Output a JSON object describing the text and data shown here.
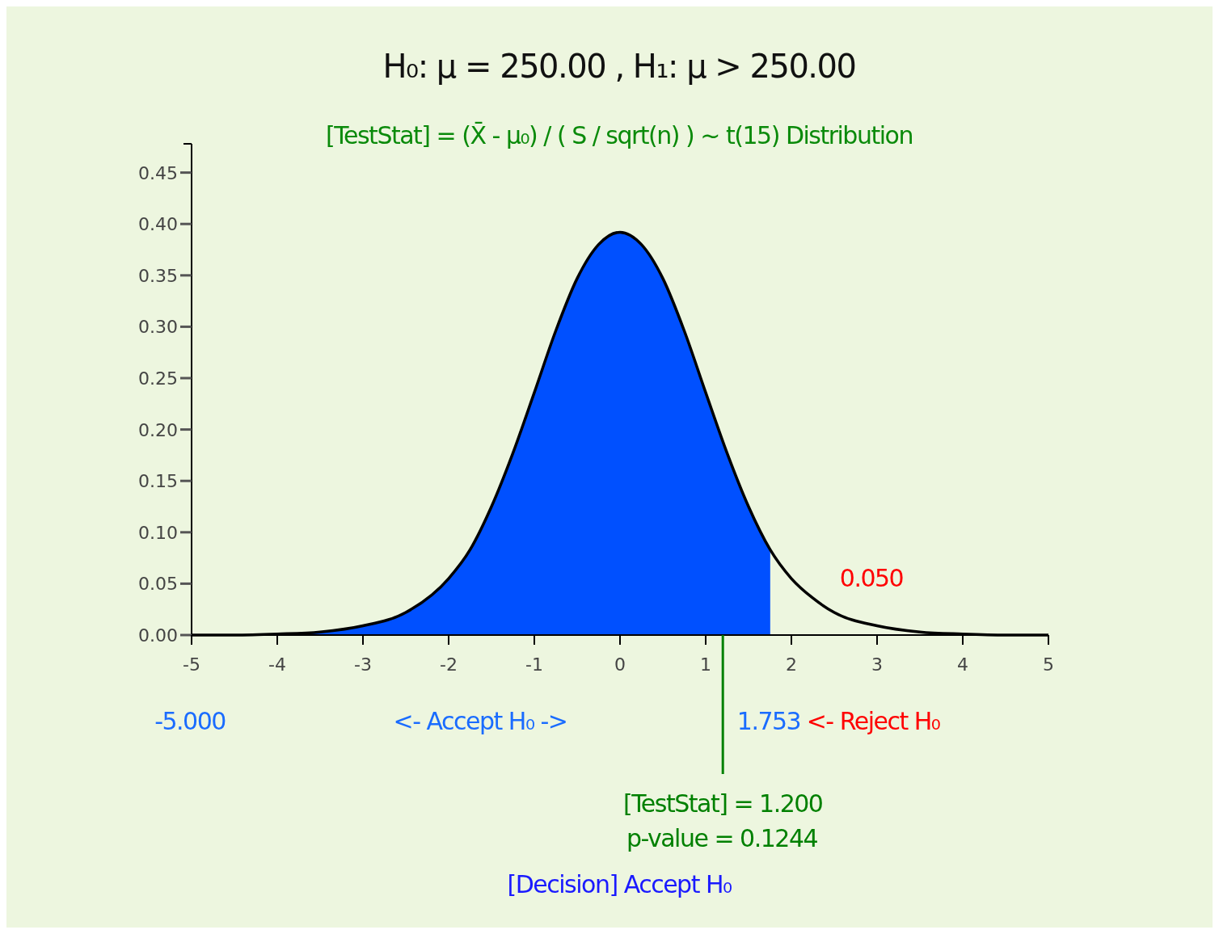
{
  "chart_data": {
    "type": "area",
    "title": "H₀: μ = 250.00 , H₁: μ > 250.00",
    "subtitle": "[TestStat] = (X̄ - μ₀) / ( S / sqrt(n) ) ~ t(15) Distribution",
    "series": [
      {
        "color": "#0050ff",
        "x": [
          -5,
          -4.5,
          -4,
          -3.5,
          -3,
          -2.5,
          -2,
          -1.75,
          -1.5,
          -1.25,
          -1,
          -0.75,
          -0.5,
          -0.25,
          0,
          0.25,
          0.5,
          0.75,
          1,
          1.25,
          1.5,
          1.753
        ],
        "values": [
          0,
          0,
          0.001,
          0.003,
          0.009,
          0.022,
          0.055,
          0.083,
          0.125,
          0.177,
          0.236,
          0.296,
          0.347,
          0.38,
          0.392,
          0.38,
          0.347,
          0.296,
          0.236,
          0.177,
          0.125,
          0.083
        ]
      },
      {
        "type": "line",
        "color": "#000000",
        "x": [
          -5,
          -4.5,
          -4,
          -3.5,
          -3,
          -2.5,
          -2,
          -1.75,
          -1.5,
          -1.25,
          -1,
          -0.75,
          -0.5,
          -0.25,
          0,
          0.25,
          0.5,
          0.75,
          1,
          1.25,
          1.5,
          1.753,
          2,
          2.25,
          2.5,
          3,
          3.5,
          4,
          4.5,
          5
        ],
        "values": [
          0,
          0,
          0.001,
          0.003,
          0.009,
          0.022,
          0.055,
          0.083,
          0.125,
          0.177,
          0.236,
          0.296,
          0.347,
          0.38,
          0.392,
          0.38,
          0.347,
          0.296,
          0.236,
          0.177,
          0.125,
          0.083,
          0.055,
          0.036,
          0.022,
          0.009,
          0.003,
          0.001,
          0,
          0
        ]
      }
    ],
    "xlim": [
      -5,
      5
    ],
    "xticks": [
      -5,
      -4,
      -3,
      -2,
      -1,
      0,
      1,
      2,
      3,
      4,
      5
    ],
    "ylim": [
      0,
      0.478
    ],
    "yticks": [
      {
        "value": 0,
        "label": "0.00"
      },
      {
        "value": 0.05,
        "label": "0.05"
      },
      {
        "value": 0.1,
        "label": "0.10"
      },
      {
        "value": 0.15,
        "label": "0.15"
      },
      {
        "value": 0.2,
        "label": "0.20"
      },
      {
        "value": 0.25,
        "label": "0.25"
      },
      {
        "value": 0.3,
        "label": "0.30"
      },
      {
        "value": 0.35,
        "label": "0.35"
      },
      {
        "value": 0.4,
        "label": "0.40"
      },
      {
        "value": 0.45,
        "label": "0.45"
      }
    ],
    "grid": false,
    "ref_lines": [
      {
        "axis": "x",
        "value": 1.2,
        "label": "[TestStat] = 1.200",
        "color": "#008000"
      }
    ],
    "annotations": [
      "0.050",
      "-5.000",
      "<- Accept H₀ ->",
      "1.753",
      "<- Reject H₀",
      "p-value = 0.1244",
      "[Decision] Accept H₀"
    ]
  }
}
